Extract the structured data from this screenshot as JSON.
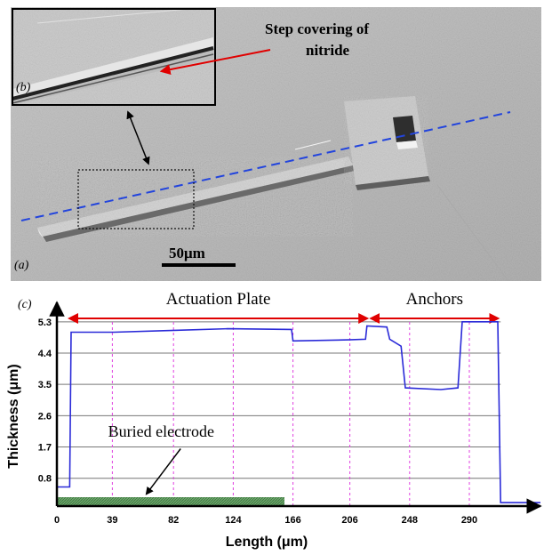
{
  "panel_a": {
    "label": "(a)",
    "scale_bar": "50μm"
  },
  "panel_b": {
    "label": "(b)",
    "callout_line1": "Step covering of",
    "callout_line2": "nitride"
  },
  "panel_c": {
    "label": "(c)",
    "region_actuation": "Actuation Plate",
    "region_anchors": "Anchors",
    "electrode_label": "Buried electrode"
  },
  "colors": {
    "profile": "#2a2ad8",
    "electrode": "#5a9a5a",
    "span_arrow": "#e00000",
    "grid_dash": "#e040e0",
    "scan_line": "#2244dd"
  },
  "chart_data": {
    "type": "line",
    "xlabel": "Length (μm)",
    "ylabel": "Thickness (μm)",
    "x_ticks": [
      0,
      39,
      82,
      124,
      166,
      206,
      248,
      290
    ],
    "y_ticks": [
      0.8,
      1.7,
      2.6,
      3.5,
      4.4,
      5.3
    ],
    "xlim": [
      0,
      340
    ],
    "ylim": [
      0,
      5.5
    ],
    "electrode_span_um": [
      0,
      160
    ],
    "actuation_span_um": [
      9,
      218
    ],
    "anchors_span_um": [
      221,
      310
    ],
    "series": [
      {
        "x": [
          0,
          9,
          10,
          40,
          80,
          120,
          165,
          166,
          205,
          217,
          218,
          232,
          234,
          242,
          245,
          270,
          282,
          285,
          310,
          312,
          340
        ],
        "y": [
          0.55,
          0.55,
          5.0,
          5.0,
          5.05,
          5.1,
          5.08,
          4.75,
          4.78,
          4.8,
          5.18,
          5.15,
          4.8,
          4.6,
          3.4,
          3.35,
          3.4,
          5.3,
          5.3,
          0.1,
          0.1
        ]
      }
    ]
  }
}
